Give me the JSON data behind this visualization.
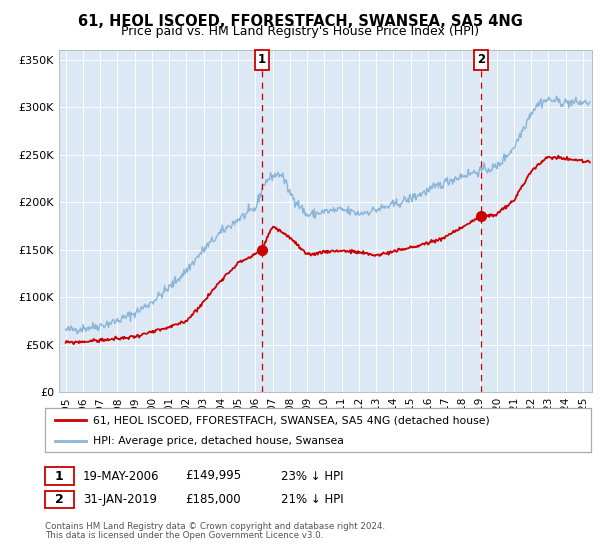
{
  "title": "61, HEOL ISCOED, FFORESTFACH, SWANSEA, SA5 4NG",
  "subtitle": "Price paid vs. HM Land Registry's House Price Index (HPI)",
  "ylim": [
    0,
    360000
  ],
  "xlim_start": 1994.6,
  "xlim_end": 2025.5,
  "yticks": [
    0,
    50000,
    100000,
    150000,
    200000,
    250000,
    300000,
    350000
  ],
  "ytick_labels": [
    "£0",
    "£50K",
    "£100K",
    "£150K",
    "£200K",
    "£250K",
    "£300K",
    "£350K"
  ],
  "xticks": [
    1995,
    1996,
    1997,
    1998,
    1999,
    2000,
    2001,
    2002,
    2003,
    2004,
    2005,
    2006,
    2007,
    2008,
    2009,
    2010,
    2011,
    2012,
    2013,
    2014,
    2015,
    2016,
    2017,
    2018,
    2019,
    2020,
    2021,
    2022,
    2023,
    2024,
    2025
  ],
  "hpi_color": "#8ab4d8",
  "price_color": "#cc0000",
  "vline_color": "#cc0000",
  "bg_color": "#ffffff",
  "plot_bg_color": "#dce9f5",
  "sale1_x": 2006.38,
  "sale1_y": 149995,
  "sale2_x": 2019.08,
  "sale2_y": 185000,
  "legend_label_price": "61, HEOL ISCOED, FFORESTFACH, SWANSEA, SA5 4NG (detached house)",
  "legend_label_hpi": "HPI: Average price, detached house, Swansea",
  "annotation1_date": "19-MAY-2006",
  "annotation1_price": "£149,995",
  "annotation1_pct": "23% ↓ HPI",
  "annotation2_date": "31-JAN-2019",
  "annotation2_price": "£185,000",
  "annotation2_pct": "21% ↓ HPI",
  "footer_line1": "Contains HM Land Registry data © Crown copyright and database right 2024.",
  "footer_line2": "This data is licensed under the Open Government Licence v3.0."
}
